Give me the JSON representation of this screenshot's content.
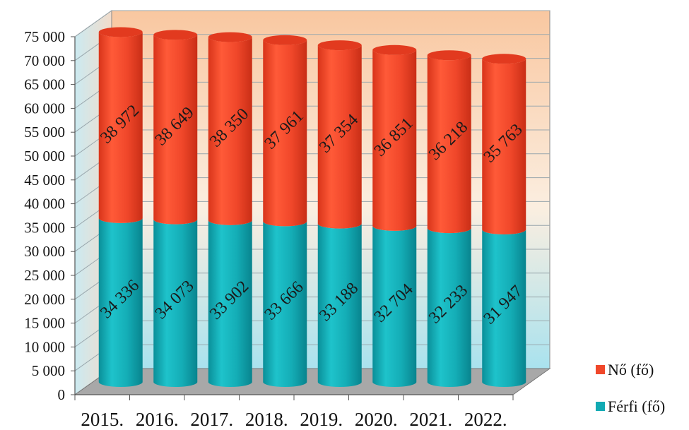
{
  "chart_data": {
    "type": "bar",
    "stacked": true,
    "style": "3d-cylinder",
    "categories": [
      "2015.",
      "2016.",
      "2017.",
      "2018.",
      "2019.",
      "2020.",
      "2021.",
      "2022."
    ],
    "series": [
      {
        "name": "Férfi (fő)",
        "color": "#12aab3",
        "values": [
          34336,
          34073,
          33902,
          33666,
          33188,
          32704,
          32233,
          31947
        ],
        "labels": [
          "34 336",
          "34 073",
          "33 902",
          "33 666",
          "33 188",
          "32 704",
          "32 233",
          "31 947"
        ]
      },
      {
        "name": "Nő (fő)",
        "color": "#f0472a",
        "values": [
          38972,
          38649,
          38350,
          37961,
          37354,
          36851,
          36218,
          35763
        ],
        "labels": [
          "38 972",
          "38 649",
          "38 350",
          "37 961",
          "37 354",
          "36 851",
          "36 218",
          "35 763"
        ]
      }
    ],
    "yticks": [
      0,
      5000,
      10000,
      15000,
      20000,
      25000,
      30000,
      35000,
      40000,
      45000,
      50000,
      55000,
      60000,
      65000,
      70000,
      75000
    ],
    "ytick_labels": [
      "0",
      "5 000",
      "10 000",
      "15 000",
      "20 000",
      "25 000",
      "30 000",
      "35 000",
      "40 000",
      "45 000",
      "50 000",
      "55 000",
      "60 000",
      "65 000",
      "70 000",
      "75 000"
    ],
    "ylim": [
      0,
      75000
    ],
    "grid": true,
    "legend": {
      "position": "right-bottom"
    },
    "colors": {
      "back_wall_top": "#f9c9a0",
      "back_wall_bottom": "#b4e4ef",
      "floor": "#aaaaaa"
    }
  }
}
